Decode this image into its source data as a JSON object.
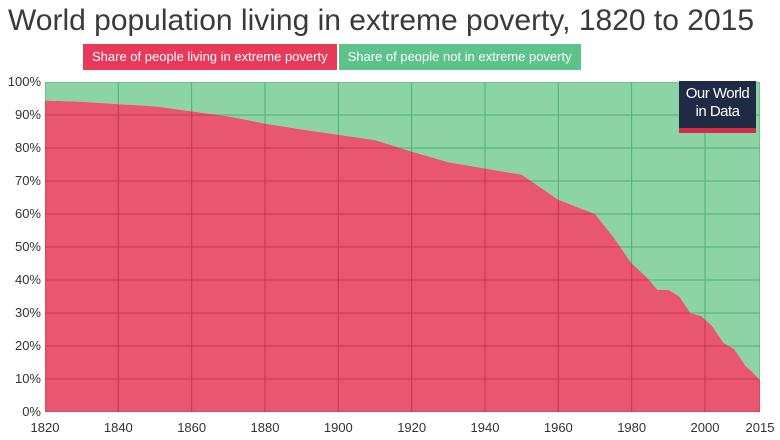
{
  "chart_data": {
    "type": "area",
    "title": "World population living in extreme poverty, 1820 to 2015",
    "xlabel": "",
    "ylabel": "",
    "xlim": [
      1820,
      2015
    ],
    "ylim": [
      0,
      100
    ],
    "x_ticks": [
      "1820",
      "1840",
      "1860",
      "1880",
      "1900",
      "1920",
      "1940",
      "1960",
      "1980",
      "2000",
      "2015"
    ],
    "y_ticks": [
      "0%",
      "10%",
      "20%",
      "30%",
      "40%",
      "50%",
      "60%",
      "70%",
      "80%",
      "90%",
      "100%"
    ],
    "grid": true,
    "stacked": true,
    "legend_position": "top",
    "series": [
      {
        "name": "Share of people living in extreme poverty",
        "color": "#e8566f",
        "points": [
          [
            1820,
            94.4
          ],
          [
            1830,
            94.0
          ],
          [
            1840,
            93.3
          ],
          [
            1850,
            92.6
          ],
          [
            1860,
            91.1
          ],
          [
            1870,
            89.6
          ],
          [
            1880,
            87.4
          ],
          [
            1890,
            85.6
          ],
          [
            1900,
            84.0
          ],
          [
            1910,
            82.4
          ],
          [
            1920,
            78.9
          ],
          [
            1930,
            75.7
          ],
          [
            1940,
            73.8
          ],
          [
            1950,
            71.9
          ],
          [
            1960,
            64.3
          ],
          [
            1970,
            60.0
          ],
          [
            1975,
            53.0
          ],
          [
            1980,
            45.0
          ],
          [
            1984,
            41.0
          ],
          [
            1987,
            37.0
          ],
          [
            1990,
            37.0
          ],
          [
            1993,
            35.0
          ],
          [
            1996,
            30.0
          ],
          [
            1999,
            29.0
          ],
          [
            2002,
            26.0
          ],
          [
            2005,
            21.0
          ],
          [
            2008,
            19.0
          ],
          [
            2011,
            14.0
          ],
          [
            2013,
            12.0
          ],
          [
            2015,
            9.6
          ]
        ]
      },
      {
        "name": "Share of people not in extreme poverty",
        "color": "#8cd4a5",
        "points": [
          [
            1820,
            5.6
          ],
          [
            1830,
            6.0
          ],
          [
            1840,
            6.7
          ],
          [
            1850,
            7.4
          ],
          [
            1860,
            8.9
          ],
          [
            1870,
            10.4
          ],
          [
            1880,
            12.6
          ],
          [
            1890,
            14.4
          ],
          [
            1900,
            16.0
          ],
          [
            1910,
            17.6
          ],
          [
            1920,
            21.1
          ],
          [
            1930,
            24.3
          ],
          [
            1940,
            26.2
          ],
          [
            1950,
            28.1
          ],
          [
            1960,
            35.7
          ],
          [
            1970,
            40.0
          ],
          [
            1975,
            47.0
          ],
          [
            1980,
            55.0
          ],
          [
            1984,
            59.0
          ],
          [
            1987,
            63.0
          ],
          [
            1990,
            63.0
          ],
          [
            1993,
            65.0
          ],
          [
            1996,
            70.0
          ],
          [
            1999,
            71.0
          ],
          [
            2002,
            74.0
          ],
          [
            2005,
            79.0
          ],
          [
            2008,
            81.0
          ],
          [
            2011,
            86.0
          ],
          [
            2013,
            88.0
          ],
          [
            2015,
            90.4
          ]
        ]
      }
    ]
  },
  "legend": {
    "poverty_label": "Share of people living in extreme poverty",
    "not_poverty_label": "Share of people not in extreme poverty"
  },
  "logo": {
    "line1": "Our World",
    "line2": "in Data"
  },
  "colors": {
    "poverty": "#e8566f",
    "not_poverty": "#8cd4a5",
    "legend_poverty": "#e8395a",
    "legend_not_poverty": "#5cc38a",
    "grid_on_red": "#c8354f",
    "grid_on_green": "#4fae72"
  }
}
